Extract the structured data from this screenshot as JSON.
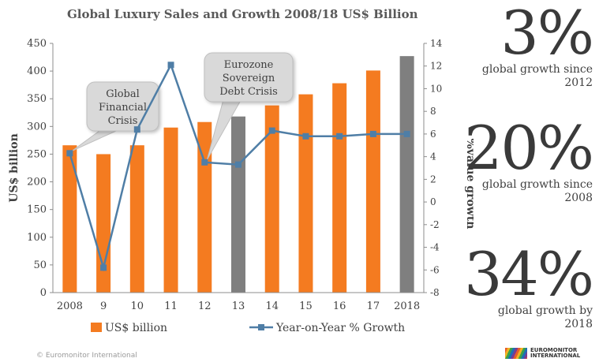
{
  "title": "Global Luxury Sales and Growth 2008/18 US$ Billion",
  "footer": "© Euromonitor International",
  "logo_text": "EUROMONITOR INTERNATIONAL",
  "stats": [
    {
      "value": "3%",
      "caption": "global growth since 2012"
    },
    {
      "value": "20%",
      "caption": "global growth since 2008"
    },
    {
      "value": "34%",
      "caption": "global growth by 2018"
    }
  ],
  "colors": {
    "bar": "#f47b20",
    "bar_highlight": "#7f7f7f",
    "line": "#4f7ea6",
    "callout": "#d9d9d9",
    "text": "#404040"
  },
  "chart_data": {
    "type": "bar",
    "categories": [
      "2008",
      "9",
      "10",
      "11",
      "12",
      "13",
      "14",
      "15",
      "16",
      "17",
      "2018"
    ],
    "series": [
      {
        "name": "US$ billion",
        "type": "bar",
        "axis": "left",
        "values": [
          266,
          250,
          266,
          298,
          308,
          318,
          338,
          358,
          378,
          401,
          427
        ],
        "highlight": [
          false,
          false,
          false,
          false,
          false,
          true,
          false,
          false,
          false,
          false,
          true
        ]
      },
      {
        "name": "Year-on-Year % Growth",
        "type": "line",
        "axis": "right",
        "values": [
          4.3,
          -5.8,
          6.4,
          12.1,
          3.5,
          3.3,
          6.3,
          5.8,
          5.8,
          6.0,
          6.0
        ]
      }
    ],
    "ylabel": "US$ billion",
    "y2label": "%value growth",
    "ylim": [
      0,
      450
    ],
    "yticks": [
      0,
      50,
      100,
      150,
      200,
      250,
      300,
      350,
      400,
      450
    ],
    "y2lim": [
      -8,
      14
    ],
    "y2ticks": [
      -8,
      -6,
      -4,
      -2,
      0,
      2,
      4,
      6,
      8,
      10,
      12,
      14
    ],
    "grid": false,
    "legend_position": "bottom",
    "annotations": [
      {
        "text": [
          "Global",
          "Financial",
          "Crisis"
        ],
        "target_category": "2008",
        "target_series": "Year-on-Year % Growth"
      },
      {
        "text": [
          "Eurozone",
          "Sovereign",
          "Debt Crisis"
        ],
        "target_category": "12",
        "target_series": "Year-on-Year % Growth"
      }
    ]
  }
}
